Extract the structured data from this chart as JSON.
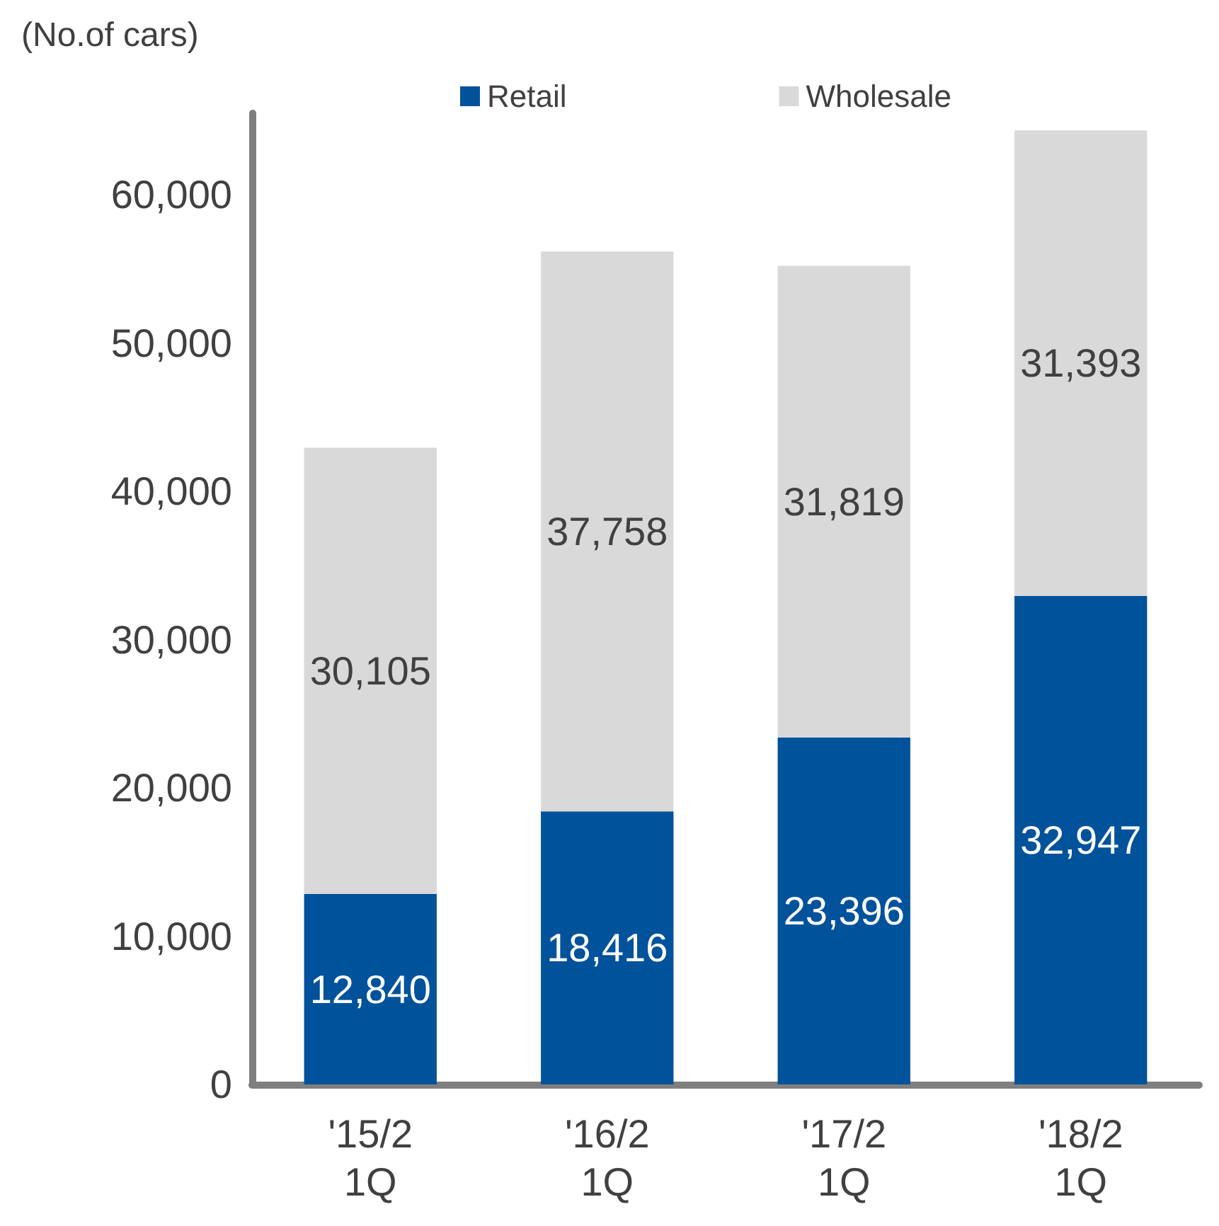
{
  "chart_data": {
    "type": "bar",
    "stacked": true,
    "ylabel": "(No.of cars)",
    "categories": [
      "'15/2\n1Q",
      "'16/2\n1Q",
      "'17/2\n1Q",
      "'18/2\n1Q"
    ],
    "series": [
      {
        "name": "Retail",
        "color": "#00529b",
        "values": [
          12840,
          18416,
          23396,
          32947
        ],
        "value_labels": [
          "12,840",
          "18,416",
          "23,396",
          "32,947"
        ]
      },
      {
        "name": "Wholesale",
        "color": "#d9d9d9",
        "values": [
          30105,
          37758,
          31819,
          31393
        ],
        "value_labels": [
          "30,105",
          "37,758",
          "31,819",
          "31,393"
        ]
      }
    ],
    "ylim": [
      0,
      65500
    ],
    "yticks": [
      0,
      {
        "value": 10000,
        "label": "10,000"
      },
      {
        "value": 20000,
        "label": "20,000"
      },
      {
        "value": 30000,
        "label": "30,000"
      },
      {
        "value": 40000,
        "label": "40,000"
      },
      {
        "value": 50000,
        "label": "50,000"
      },
      {
        "value": 60000,
        "label": "60,000"
      }
    ],
    "grid": false,
    "legend": "top"
  }
}
